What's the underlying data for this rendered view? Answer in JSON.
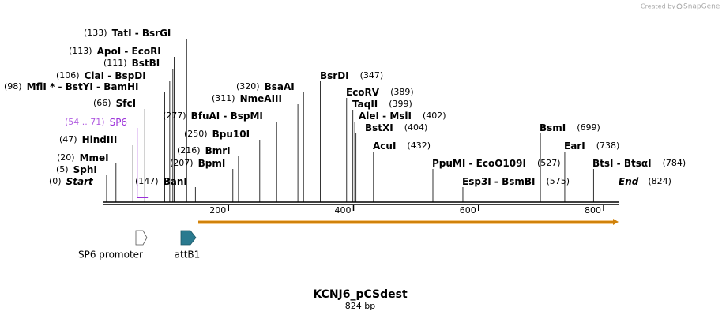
{
  "header": {
    "credit": "Created by",
    "brand": "SnapGene"
  },
  "title": "KCNJ6_pCSdest",
  "subtitle": "824 bp",
  "map": {
    "start": {
      "position": {
        "value": 0,
        "label": "(0)"
      },
      "label": "Start"
    },
    "end": {
      "position": {
        "value": 824,
        "label": "(824)"
      },
      "label": "End"
    },
    "ticks": [
      200,
      400,
      600,
      800
    ]
  },
  "sites": [
    {
      "position": {
        "value": 133,
        "label": "(133)"
      },
      "name": "TatI  - BsrGI"
    },
    {
      "position": {
        "value": 113,
        "label": "(113)"
      },
      "name": "ApoI  - EcoRI"
    },
    {
      "position": {
        "value": 111,
        "label": "(111)"
      },
      "name": "BstBI"
    },
    {
      "position": {
        "value": 106,
        "label": "(106)"
      },
      "name": "ClaI  - BspDI"
    },
    {
      "position": {
        "value": 98,
        "label": "(98)"
      },
      "name": "MflI * - BstYI - BamHI"
    },
    {
      "position": {
        "value": 66,
        "label": "(66)"
      },
      "name": "SfcI"
    },
    {
      "position": {
        "value": 47,
        "label": "(47)"
      },
      "name": "HindIII"
    },
    {
      "position": {
        "value": 20,
        "label": "(20)"
      },
      "name": "MmeI"
    },
    {
      "position": {
        "value": 5,
        "label": "(5)"
      },
      "name": "SphI"
    },
    {
      "position": {
        "value": 147,
        "label": "(147)"
      },
      "name": "BanI"
    },
    {
      "position": {
        "value": 277,
        "label": "(277)"
      },
      "name": "BfuAI  - BspMI"
    },
    {
      "position": {
        "value": 250,
        "label": "(250)"
      },
      "name": "Bpu10I"
    },
    {
      "position": {
        "value": 216,
        "label": "(216)"
      },
      "name": "BmrI"
    },
    {
      "position": {
        "value": 207,
        "label": "(207)"
      },
      "name": "BpmI"
    },
    {
      "position": {
        "value": 320,
        "label": "(320)"
      },
      "name": "BsaAI"
    },
    {
      "position": {
        "value": 311,
        "label": "(311)"
      },
      "name": "NmeAIII"
    },
    {
      "position": {
        "value": 347,
        "label": "(347)"
      },
      "name": "BsrDI"
    },
    {
      "position": {
        "value": 389,
        "label": "(389)"
      },
      "name": "EcoRV"
    },
    {
      "position": {
        "value": 399,
        "label": "(399)"
      },
      "name": "TaqII"
    },
    {
      "position": {
        "value": 402,
        "label": "(402)"
      },
      "name": "AleI  - MslI"
    },
    {
      "position": {
        "value": 404,
        "label": "(404)"
      },
      "name": "BstXI"
    },
    {
      "position": {
        "value": 432,
        "label": "(432)"
      },
      "name": "AcuI"
    },
    {
      "position": {
        "value": 527,
        "label": "(527)"
      },
      "name": "PpuMI  - EcoO109I"
    },
    {
      "position": {
        "value": 575,
        "label": "(575)"
      },
      "name": "Esp3I  - BsmBI"
    },
    {
      "position": {
        "value": 699,
        "label": "(699)"
      },
      "name": "BsmI"
    },
    {
      "position": {
        "value": 738,
        "label": "(738)"
      },
      "name": "EarI"
    },
    {
      "position": {
        "value": 784,
        "label": "(784)"
      },
      "name": "BtsI  - BtsαI"
    }
  ],
  "primer": {
    "range": {
      "label": "(54 .. 71)",
      "start": 54,
      "end": 71
    },
    "name": "SP6"
  },
  "features": [
    {
      "label": "SP6 promoter"
    },
    {
      "label": "attB1"
    }
  ]
}
